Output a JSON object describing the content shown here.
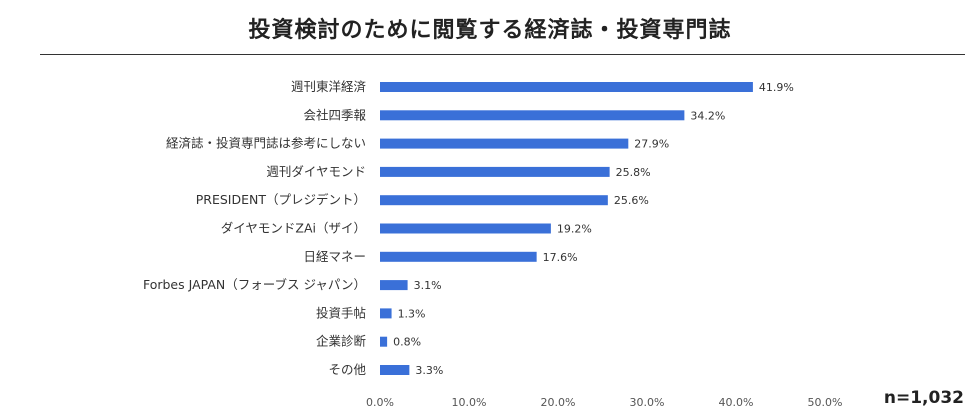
{
  "chart_data": {
    "type": "bar",
    "orientation": "horizontal",
    "title": "投資検討のために閲覧する経済誌・投資専門誌",
    "categories": [
      "週刊東洋経済",
      "会社四季報",
      "経済誌・投資専門誌は参考にしない",
      "週刊ダイヤモンド",
      "PRESIDENT（プレジデント）",
      "ダイヤモンドZAi（ザイ）",
      "日経マネー",
      "Forbes JAPAN（フォーブス ジャパン）",
      "投資手帖",
      "企業診断",
      "その他"
    ],
    "values": [
      41.9,
      34.2,
      27.9,
      25.8,
      25.6,
      19.2,
      17.6,
      3.1,
      1.3,
      0.8,
      3.3
    ],
    "value_labels": [
      "41.9%",
      "34.2%",
      "27.9%",
      "25.8%",
      "25.6%",
      "19.2%",
      "17.6%",
      "3.1%",
      "1.3%",
      "0.8%",
      "3.3%"
    ],
    "xlim": [
      0,
      50
    ],
    "xticks": [
      0,
      10,
      20,
      30,
      40,
      50
    ],
    "xtick_labels": [
      "0.0%",
      "10.0%",
      "20.0%",
      "30.0%",
      "40.0%",
      "50.0%"
    ],
    "bar_color": "#3a70d8",
    "grid": false,
    "note": "n=1,032"
  }
}
